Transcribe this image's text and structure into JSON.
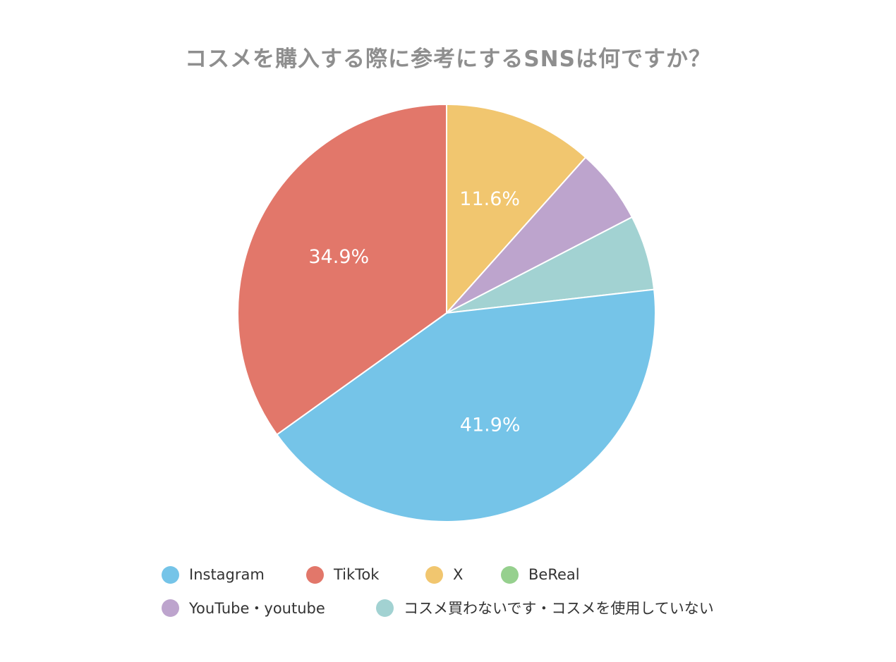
{
  "chart_data": {
    "type": "pie",
    "title": "コスメを購入する際に参考にするSNSは何ですか？",
    "slices": [
      {
        "name": "Instagram",
        "value": 41.9,
        "label": "41.9%",
        "color": "#75C4E8"
      },
      {
        "name": "TikTok",
        "value": 34.9,
        "label": "34.9%",
        "color": "#E2776A"
      },
      {
        "name": "X",
        "value": 11.6,
        "label": "11.6%",
        "color": "#F1C66F"
      },
      {
        "name": "BeReal",
        "value": 0,
        "label": "",
        "color": "#96D08E"
      },
      {
        "name": "YouTube・youtube",
        "value": 5.8,
        "label": "",
        "color": "#BDA4CD"
      },
      {
        "name": "コスメ買わないです・コスメを使用していない",
        "value": 5.8,
        "label": "",
        "color": "#A2D2D2"
      }
    ],
    "legend_position": "bottom"
  }
}
